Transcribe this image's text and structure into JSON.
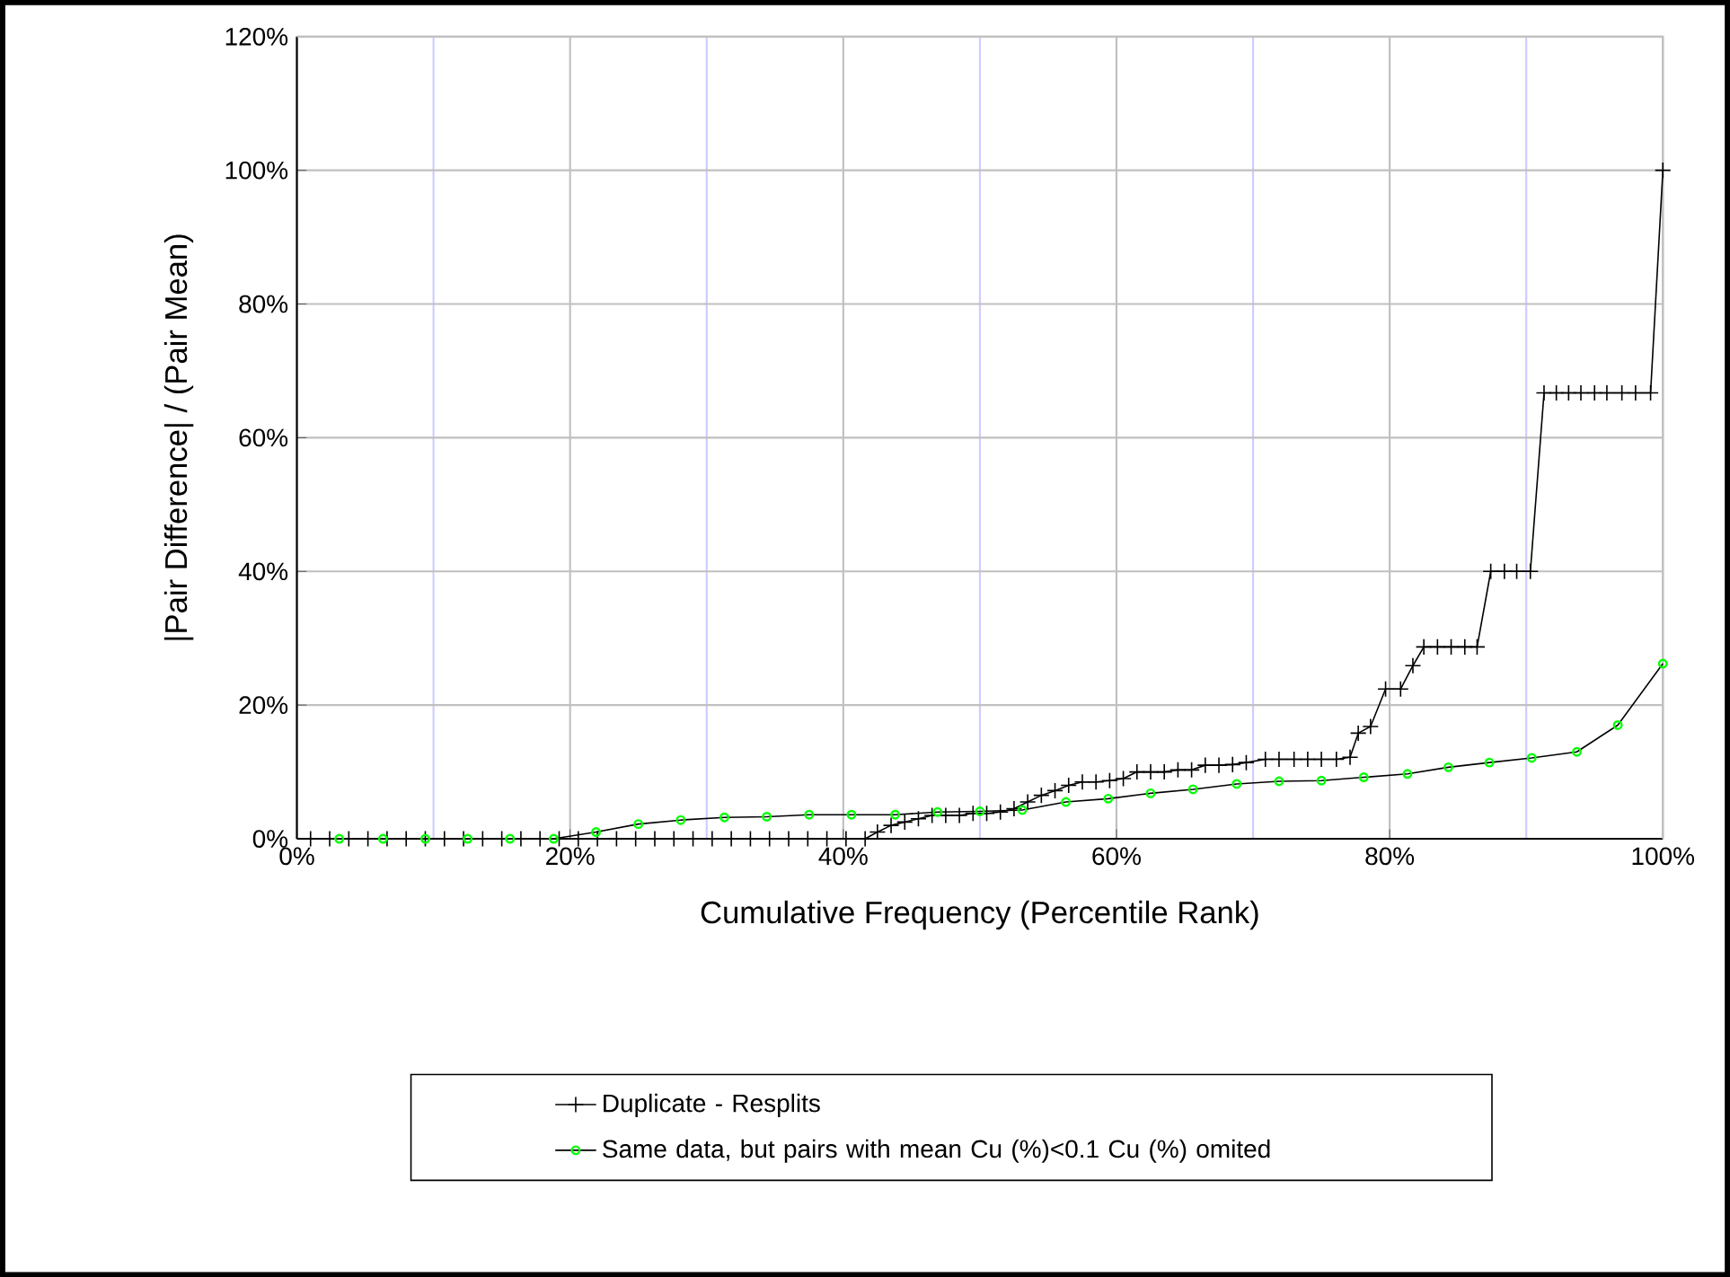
{
  "chart_data": {
    "type": "line",
    "xlabel": "Cumulative Frequency (Percentile Rank)",
    "ylabel": "|Pair Difference| / (Pair Mean)",
    "xlim": [
      0,
      100
    ],
    "ylim": [
      0,
      120
    ],
    "xticks": [
      {
        "value": 0,
        "label": "0%"
      },
      {
        "value": 10,
        "label": null
      },
      {
        "value": 20,
        "label": "20%"
      },
      {
        "value": 30,
        "label": null
      },
      {
        "value": 40,
        "label": "40%"
      },
      {
        "value": 50,
        "label": null
      },
      {
        "value": 60,
        "label": "60%"
      },
      {
        "value": 70,
        "label": null
      },
      {
        "value": 80,
        "label": "80%"
      },
      {
        "value": 90,
        "label": null
      },
      {
        "value": 100,
        "label": "100%"
      }
    ],
    "yticks": [
      {
        "value": 0,
        "label": "0%"
      },
      {
        "value": 20,
        "label": "20%"
      },
      {
        "value": 40,
        "label": "40%"
      },
      {
        "value": 60,
        "label": "60%"
      },
      {
        "value": 80,
        "label": "80%"
      },
      {
        "value": 100,
        "label": "100%"
      },
      {
        "value": 120,
        "label": "120%"
      }
    ],
    "grid": true,
    "legend": "bottom",
    "series": [
      {
        "name": "Duplicate - Resplits",
        "color": "#000000",
        "marker": "cross",
        "x": [
          1,
          2.4,
          3.8,
          5.2,
          6.6,
          8,
          9.4,
          10.8,
          12.2,
          13.6,
          15,
          16.4,
          17.8,
          19.2,
          20.6,
          22,
          23.4,
          24.8,
          26.2,
          27.6,
          29,
          30.4,
          31.8,
          33.2,
          34.6,
          36,
          37.4,
          38.8,
          40.2,
          41.6,
          42.5,
          43.5,
          44.5,
          45.5,
          46.5,
          47.5,
          48.5,
          49.5,
          50.5,
          51.5,
          52.5,
          53.5,
          54.5,
          55.5,
          56.5,
          57.5,
          58.5,
          59.5,
          60.5,
          61.5,
          62.5,
          63.5,
          64.5,
          65.5,
          66.5,
          67.5,
          68.5,
          69.5,
          70.9,
          71.9,
          73,
          74,
          75,
          76.1,
          77.1,
          77.7,
          78.6,
          79.7,
          80.8,
          81.7,
          82.5,
          83.5,
          84.5,
          85.5,
          86.4,
          87.4,
          88.4,
          89.3,
          90.3,
          91.3,
          92.2,
          93.1,
          94,
          95,
          95.9,
          97,
          98,
          99.1,
          100
        ],
        "values": [
          0,
          0,
          0,
          0,
          0,
          0,
          0,
          0,
          0,
          0,
          0,
          0,
          0,
          0,
          0,
          0,
          0,
          0,
          0,
          0,
          0,
          0,
          0,
          0,
          0,
          0,
          0,
          0,
          0,
          0,
          1,
          2,
          2.5,
          3,
          3.5,
          3.5,
          3.5,
          3.8,
          3.8,
          4,
          4.5,
          5.5,
          6.5,
          7.2,
          8,
          8.5,
          8.5,
          8.7,
          9,
          10,
          10,
          10,
          10.3,
          10.3,
          11,
          11,
          11.1,
          11.4,
          11.9,
          11.9,
          11.9,
          11.9,
          11.9,
          11.9,
          12.2,
          15.8,
          16.8,
          22.4,
          22.4,
          25.9,
          28.7,
          28.7,
          28.7,
          28.7,
          28.7,
          40,
          40,
          40,
          40,
          66.7,
          66.7,
          66.7,
          66.7,
          66.7,
          66.7,
          66.7,
          66.7,
          66.7,
          100
        ]
      },
      {
        "name": "Same data, but pairs with mean Cu (%)<0.1 Cu (%) omited",
        "color": "#00ff00",
        "marker": "circle",
        "x": [
          3.1,
          6.3,
          9.4,
          12.5,
          15.6,
          18.8,
          21.9,
          25,
          28.1,
          31.3,
          34.4,
          37.5,
          40.6,
          43.8,
          46.9,
          50,
          53.1,
          56.3,
          59.4,
          62.5,
          65.6,
          68.8,
          71.9,
          75,
          78.1,
          81.3,
          84.3,
          87.3,
          90.4,
          93.7,
          96.7,
          100
        ],
        "values": [
          0,
          0,
          0,
          0,
          0,
          0,
          1,
          2.2,
          2.8,
          3.2,
          3.3,
          3.6,
          3.6,
          3.6,
          4,
          4.1,
          4.3,
          5.5,
          6,
          6.8,
          7.4,
          8.2,
          8.6,
          8.7,
          9.2,
          9.7,
          10.7,
          11.4,
          12.1,
          13,
          17,
          26.2
        ]
      }
    ]
  }
}
